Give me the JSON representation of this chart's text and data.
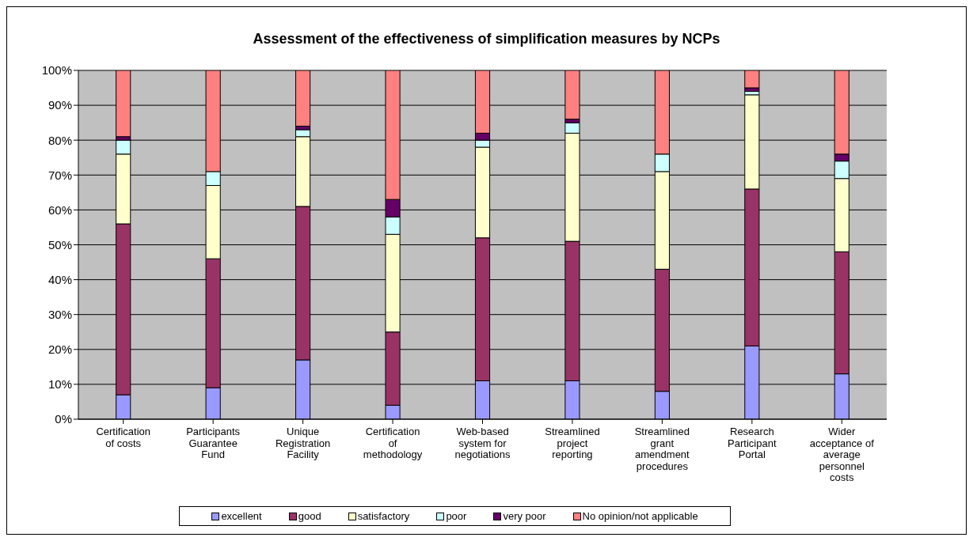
{
  "chart_data": {
    "type": "bar",
    "title": "Assessment of the effectiveness of simplification measures by NCPs",
    "stacked": true,
    "categories": [
      "Certification of costs",
      "Participants Guarantee Fund",
      "Unique Registration Facility",
      "Certification of methodology",
      "Web-based system for negotiations",
      "Streamlined project reporting",
      "Streamlined grant amendment procedures",
      "Research Participant Portal",
      "Wider acceptance of average personnel costs"
    ],
    "series": [
      {
        "name": "excellent",
        "color": "#9999ff",
        "values": [
          7,
          9,
          17,
          4,
          11,
          11,
          8,
          21,
          13
        ]
      },
      {
        "name": "good",
        "color": "#993366",
        "values": [
          49,
          37,
          44,
          21,
          41,
          40,
          35,
          45,
          35
        ]
      },
      {
        "name": "satisfactory",
        "color": "#ffffcc",
        "values": [
          20,
          21,
          20,
          28,
          26,
          31,
          28,
          27,
          21
        ]
      },
      {
        "name": "poor",
        "color": "#ccffff",
        "values": [
          4,
          4,
          2,
          5,
          2,
          3,
          5,
          1,
          5
        ]
      },
      {
        "name": "very poor",
        "color": "#660066",
        "values": [
          1,
          0,
          1,
          5,
          2,
          1,
          0,
          1,
          2
        ]
      },
      {
        "name": "No opinion/not applicable",
        "color": "#ff8080",
        "values": [
          19,
          29,
          16,
          37,
          18,
          14,
          24,
          5,
          24
        ]
      }
    ],
    "ylim": [
      0,
      100
    ],
    "yticks": [
      {
        "value": 0,
        "label": "0%"
      },
      {
        "value": 10,
        "label": "10%"
      },
      {
        "value": 20,
        "label": "20%"
      },
      {
        "value": 30,
        "label": "30%"
      },
      {
        "value": 40,
        "label": "40%"
      },
      {
        "value": 50,
        "label": "50%"
      },
      {
        "value": 60,
        "label": "60%"
      },
      {
        "value": 70,
        "label": "70%"
      },
      {
        "value": 80,
        "label": "80%"
      },
      {
        "value": 90,
        "label": "90%"
      },
      {
        "value": 100,
        "label": "100%"
      }
    ],
    "grid": "y",
    "legend": "bottom"
  }
}
